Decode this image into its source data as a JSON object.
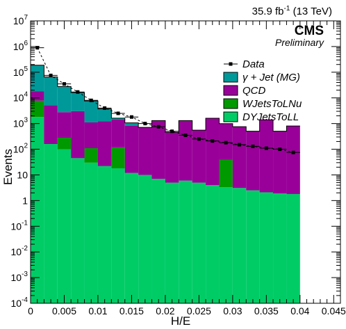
{
  "chart_data": {
    "type": "bar",
    "stacked": true,
    "log_y": true,
    "xlabel": "H/E",
    "ylabel": "Events",
    "xlim": [
      0,
      0.046
    ],
    "ylim": [
      0.0001,
      10000000
    ],
    "bin_edges": [
      0,
      0.002,
      0.004,
      0.006,
      0.008,
      0.01,
      0.012,
      0.014,
      0.016,
      0.018,
      0.02,
      0.022,
      0.024,
      0.026,
      0.028,
      0.03,
      0.032,
      0.034,
      0.036,
      0.038,
      0.04
    ],
    "x_tick_values": [
      0,
      0.005,
      0.01,
      0.015,
      0.02,
      0.025,
      0.03,
      0.035,
      0.04,
      0.045
    ],
    "x_tick_labels": [
      "0",
      "0.005",
      "0.01",
      "0.015",
      "0.02",
      "0.025",
      "0.03",
      "0.035",
      "0.04",
      "0.045"
    ],
    "y_tick_labels": [
      {
        "base": "10",
        "exp": "-4"
      },
      {
        "base": "10",
        "exp": "-3"
      },
      {
        "base": "10",
        "exp": "-2"
      },
      {
        "base": "10",
        "exp": "-1"
      },
      {
        "base": "1",
        "exp": ""
      },
      {
        "base": "10",
        "exp": ""
      },
      {
        "base": "10",
        "exp": "2"
      },
      {
        "base": "10",
        "exp": "3"
      },
      {
        "base": "10",
        "exp": "4"
      },
      {
        "base": "10",
        "exp": "5"
      },
      {
        "base": "10",
        "exp": "6"
      },
      {
        "base": "10",
        "exp": "7"
      }
    ],
    "lumi": {
      "pre": "35.9 fb",
      "exp": "-1",
      "post": " (13 TeV)"
    },
    "experiment": "CMS",
    "status": "Preliminary",
    "legend_position": "top-right",
    "series": [
      {
        "name": "DYJetsToLL",
        "color": "#00cc66",
        "values": [
          1800,
          160,
          100,
          45,
          30,
          22,
          18,
          12,
          10,
          7,
          5,
          6,
          5,
          4,
          3.3,
          3.1,
          2.5,
          2.1,
          1.9,
          1.8
        ]
      },
      {
        "name": "WJetsToLNu",
        "color": "#009900",
        "values": [
          6000,
          0,
          180,
          0,
          80,
          0,
          100,
          0,
          0,
          0,
          0,
          0,
          0,
          0,
          36,
          0,
          0,
          0,
          0,
          0
        ]
      },
      {
        "name": "QCD",
        "color": "#990099",
        "values": [
          10000,
          5000,
          2500,
          3000,
          1000,
          1200,
          1300,
          800,
          700,
          1300,
          450,
          1300,
          550,
          1600,
          950,
          750,
          500,
          1400,
          500,
          800
        ]
      },
      {
        "name": "γ + Jet (MG)",
        "color": "#009999",
        "values": [
          170000,
          60000,
          25000,
          13000,
          6500,
          2500,
          200,
          250,
          0,
          0,
          0,
          0,
          0,
          0,
          0,
          0,
          0,
          0,
          0,
          0
        ]
      }
    ],
    "data_series": {
      "name": "Data",
      "color": "#000000",
      "values": [
        900000,
        75000,
        35000,
        17000,
        8000,
        4000,
        2500,
        1800,
        1000,
        750,
        500,
        350,
        250,
        210,
        180,
        150,
        130,
        110,
        100,
        75
      ]
    }
  }
}
